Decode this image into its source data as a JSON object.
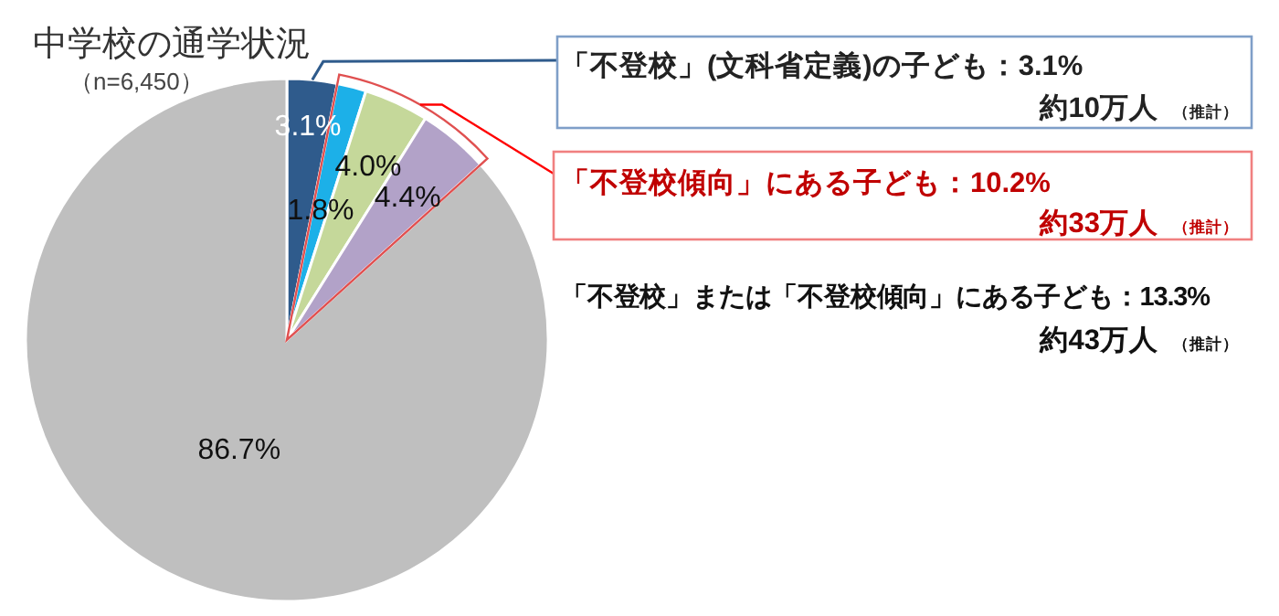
{
  "chart_data": {
    "type": "pie",
    "title": "中学校の通学状況",
    "subtitle": "（n=6,450）",
    "categories": [
      null,
      null,
      null,
      null,
      null
    ],
    "values": [
      3.1,
      1.8,
      4.0,
      4.4,
      86.7
    ],
    "colors": [
      "#2f5b8c",
      "#1cb0e8",
      "#c5d89a",
      "#b2a2c8",
      "#bfbfbf"
    ],
    "value_labels": [
      "3.1%",
      "1.8%",
      "4.0%",
      "4.4%",
      "86.7%"
    ],
    "annotations": [
      "「不登校」(文科省定義)の子ども：3.1%",
      "約10万人",
      "（推計）",
      "「不登校傾向」にある子ども：10.2%",
      "約33万人",
      "（推計）",
      "「不登校」または「不登校傾向」にある子ども：13.3%",
      "約43万人",
      "（推計）"
    ]
  }
}
